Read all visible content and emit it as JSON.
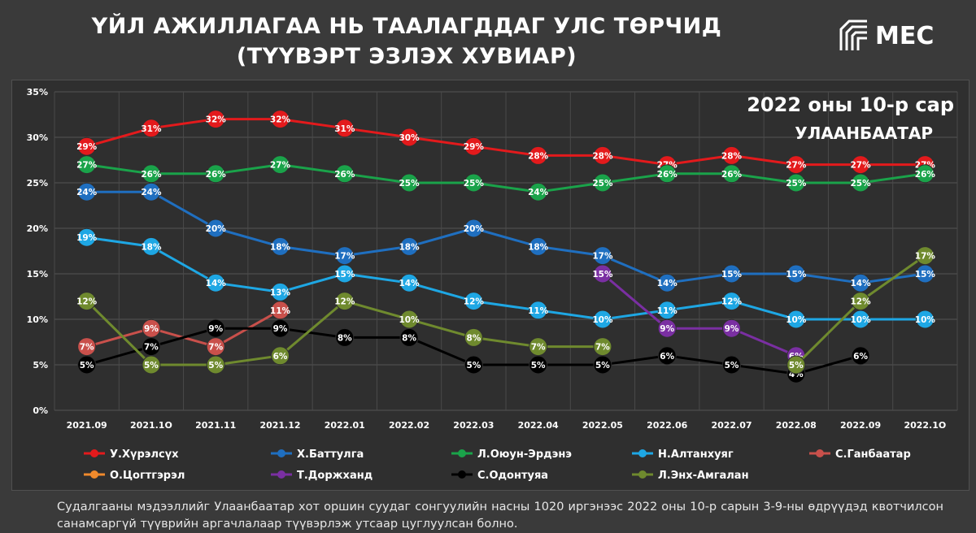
{
  "title": {
    "line1": "ҮЙЛ АЖИЛЛАГАА НЬ ТААЛАГДДАГ УЛС ТӨРЧИД",
    "line2": "(ТҮҮВЭРТ ЭЗЛЭХ ХУВИАР)"
  },
  "logo": {
    "text": "MEC"
  },
  "note": "Судалгааны мэдээллийг Улаанбаатар хот оршин суудаг сонгуулийн насны 1020 иргэнээс 2022 оны 10-р сарын 3-9-ны өдрүүдэд квотчилсон санамсаргүй түүврийн аргачлалаар түүвэрлэж утсаар цуглуулсан болно.",
  "chart_data": {
    "type": "line",
    "subtitle": "2022 оны 10-р сар",
    "location": "УЛААНБААТАР",
    "categories": [
      "2021.09",
      "2021.1O",
      "2021.11",
      "2021.12",
      "2022.01",
      "2022.02",
      "2022.03",
      "2022.04",
      "2022.05",
      "2022.06",
      "2022.07",
      "2022.08",
      "2022.09",
      "2022.1O"
    ],
    "ylim": [
      0,
      35
    ],
    "yticks": [
      "0%",
      "5%",
      "10%",
      "15%",
      "20%",
      "25%",
      "30%",
      "35%"
    ],
    "grid": "horizontal",
    "legend_position": "bottom",
    "series": [
      {
        "name": "У.Хүрэлсүх",
        "color": "#e31a1c",
        "values": [
          29,
          31,
          32,
          32,
          31,
          30,
          29,
          28,
          28,
          27,
          28,
          27,
          27,
          27
        ]
      },
      {
        "name": "Х.Баттулга",
        "color": "#1f6fc0",
        "values": [
          24,
          24,
          20,
          18,
          17,
          18,
          20,
          18,
          17,
          14,
          15,
          15,
          14,
          15
        ]
      },
      {
        "name": "Л.Оюун-Эрдэнэ",
        "color": "#1aa34a",
        "values": [
          27,
          26,
          26,
          27,
          26,
          25,
          25,
          24,
          25,
          26,
          26,
          25,
          25,
          26
        ]
      },
      {
        "name": "Н.Алтанхуяг",
        "color": "#1ea7e4",
        "values": [
          19,
          18,
          14,
          13,
          15,
          14,
          12,
          11,
          10,
          11,
          12,
          10,
          10,
          10
        ]
      },
      {
        "name": "С.Ганбаатар",
        "color": "#c9504b",
        "values": [
          7,
          9,
          7,
          11,
          null,
          null,
          null,
          null,
          null,
          null,
          null,
          null,
          null,
          null
        ]
      },
      {
        "name": "О.Цогтгэрэл",
        "color": "#f08a2c",
        "values": [
          null,
          null,
          null,
          null,
          null,
          null,
          null,
          null,
          null,
          null,
          null,
          null,
          null,
          null
        ]
      },
      {
        "name": "Т.Доржханд",
        "color": "#7a2fa2",
        "values": [
          null,
          null,
          null,
          null,
          null,
          null,
          null,
          null,
          15,
          9,
          9,
          6,
          null,
          null
        ]
      },
      {
        "name": "С.Одонтуяа",
        "color": "#000000",
        "values": [
          5,
          7,
          9,
          9,
          8,
          8,
          5,
          5,
          5,
          6,
          5,
          4,
          6,
          null
        ]
      },
      {
        "name": "Л.Энх-Амгалан",
        "color": "#6f8a2e",
        "values": [
          12,
          5,
          5,
          6,
          12,
          10,
          8,
          7,
          7,
          null,
          null,
          5,
          12,
          17
        ]
      }
    ]
  }
}
